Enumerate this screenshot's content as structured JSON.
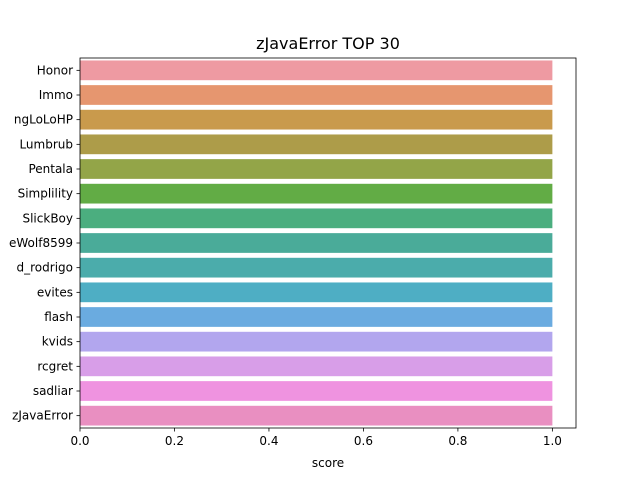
{
  "chart_data": {
    "type": "bar",
    "orientation": "horizontal",
    "title": "zJavaError TOP 30",
    "xlabel": "score",
    "ylabel": "",
    "xlim": [
      0,
      1.05
    ],
    "xticks": [
      "0.0",
      "0.2",
      "0.4",
      "0.6",
      "0.8",
      "1.0"
    ],
    "xtick_values": [
      0,
      0.2,
      0.4,
      0.6,
      0.8,
      1.0
    ],
    "categories": [
      "Honor",
      "Immo",
      "ngLoLoHP",
      "Lumbrub",
      "Pentala",
      "Simplility",
      "SlickBoy",
      "eWolf8599",
      "d_rodrigo",
      "evites",
      "flash",
      "kvids",
      "rcgret",
      "sadliar",
      "zJavaError"
    ],
    "values": [
      1,
      1,
      1,
      1,
      1,
      1,
      1,
      1,
      1,
      1,
      1,
      1,
      1,
      1,
      1
    ],
    "colors": [
      "#ee9aa2",
      "#e6966f",
      "#c99a4c",
      "#ad9c49",
      "#93a548",
      "#62ac45",
      "#4bae7f",
      "#4aab99",
      "#4bacab",
      "#4eaec4",
      "#6aabe0",
      "#b2a6ee",
      "#d89ee8",
      "#ef93e0",
      "#e98fc1"
    ]
  }
}
